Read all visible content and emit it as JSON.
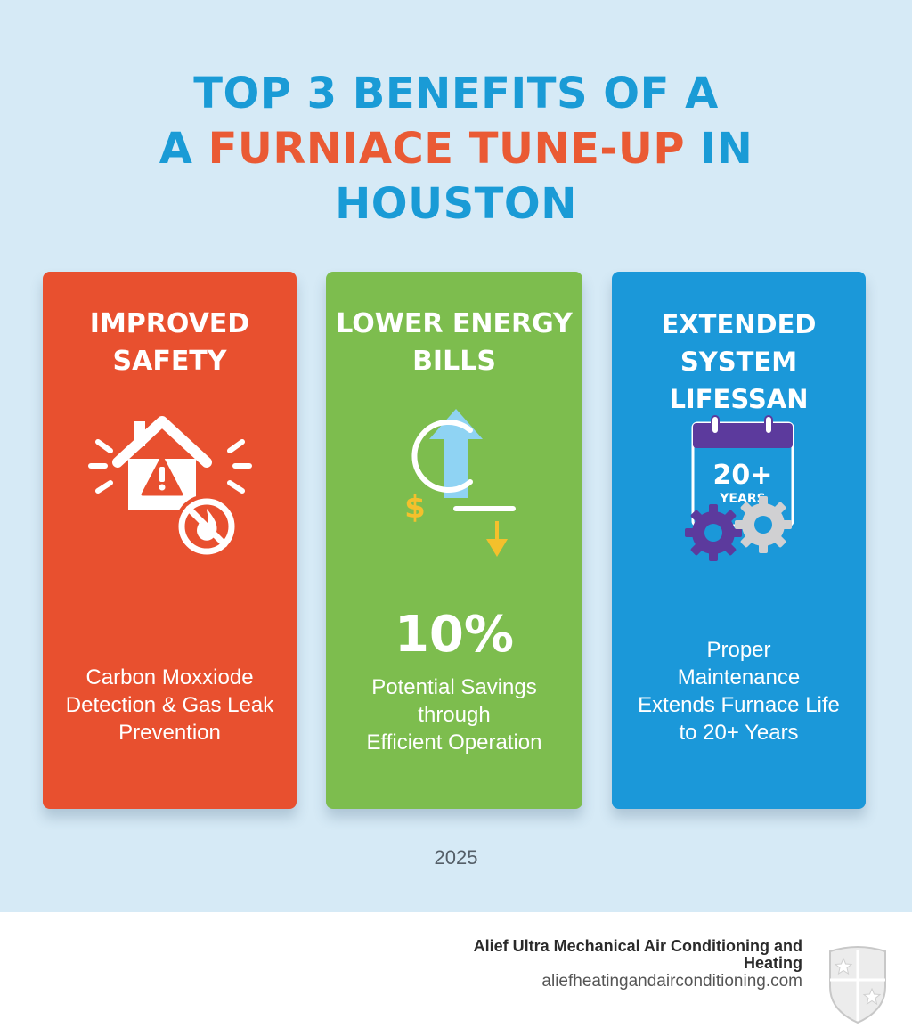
{
  "title": {
    "line1": "TOP 3 BENEFITS OF A",
    "line2_prefix": "A ",
    "line2_highlight": "FURNIACE TUNE-UP",
    "line2_suffix": " IN",
    "line3": "HOUSTON"
  },
  "cards": [
    {
      "title": "IMPROVED\nSAFETY",
      "icon": "house-warning-no-fire-icon",
      "text": "Carbon Moxxiode\nDetection & Gas Leak\nPrevention",
      "color": "#e8502f"
    },
    {
      "title": "LOWER ENERGY\nBILLS",
      "icon": "savings-arrows-icon",
      "stat": "10%",
      "text": "Potential Savings\nthrough\nEfficient Operation",
      "color": "#7dbd4e"
    },
    {
      "title": "EXTENDED SYSTEM\nLIFESSAN",
      "icon": "calendar-gears-icon",
      "icon_label_big": "20+",
      "icon_label_small": "YEARS",
      "text": "Proper\nMaintenance\nExtends Furnace Life\nto 20+ Years",
      "color": "#1b98d9"
    }
  ],
  "year": "2025",
  "footer": {
    "company": "Alief Ultra Mechanical Air Conditioning and Heating",
    "website": "aliefheatingandairconditioning.com",
    "logo": "shield-logo-icon"
  },
  "colors": {
    "background": "#d6eaf6",
    "title_blue": "#1a9bd6",
    "title_orange": "#ea5a34"
  }
}
